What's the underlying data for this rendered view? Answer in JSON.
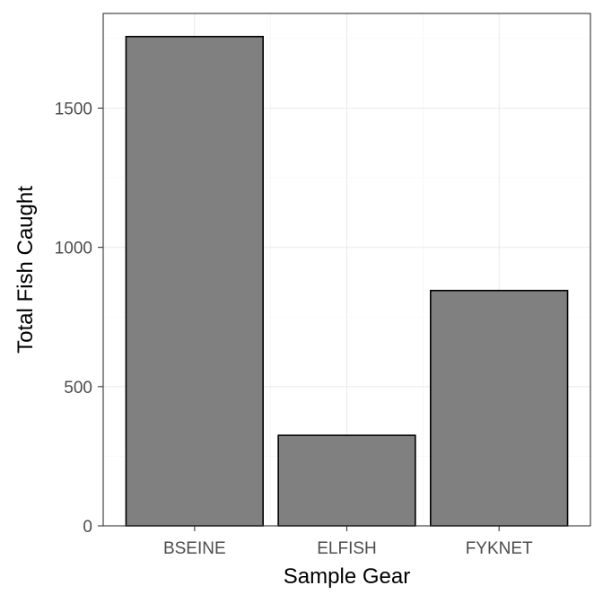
{
  "chart_data": {
    "type": "bar",
    "categories": [
      "BSEINE",
      "ELFISH",
      "FYKNET"
    ],
    "values": [
      1757,
      325,
      845
    ],
    "xlabel": "Sample Gear",
    "ylabel": "Total Fish Caught",
    "ylim": [
      0,
      1840
    ],
    "yticks": [
      0,
      500,
      1000,
      1500
    ],
    "ytick_labels": [
      "0",
      "500",
      "1000",
      "1500"
    ],
    "grid": true,
    "colors": {
      "bar_fill": "#808080",
      "bar_stroke": "#000000",
      "grid_major": "#ebebeb",
      "grid_minor": "#f5f5f5",
      "panel_border": "#333333",
      "background": "#ffffff"
    }
  }
}
